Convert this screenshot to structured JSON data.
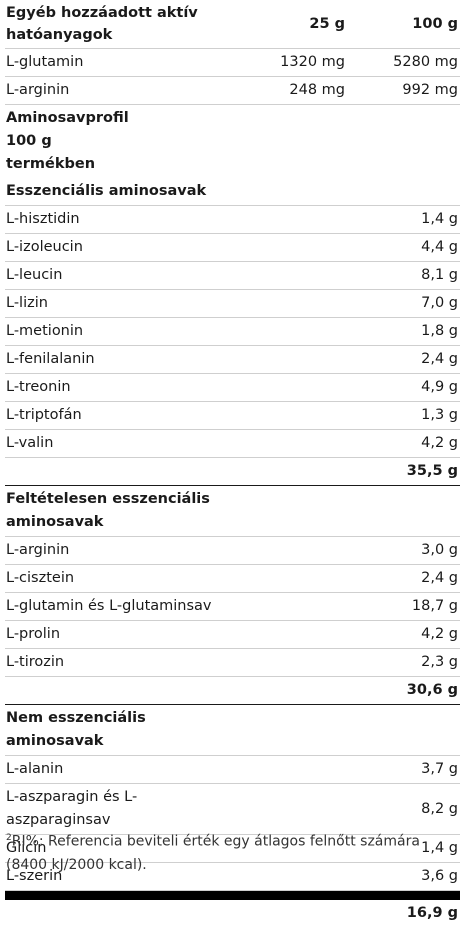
{
  "active": {
    "heading": "Egyéb hozzáadott aktív hatóanyagok",
    "col1": "25 g",
    "col2": "100 g",
    "rows": [
      {
        "name": "L-glutamin",
        "v1": "1320 mg",
        "v2": "5280 mg"
      },
      {
        "name": "L-arginin",
        "v1": "248 mg",
        "v2": "992 mg"
      }
    ]
  },
  "profile": {
    "heading": "Aminosavprofil 100 g termékben",
    "essential": {
      "heading": "Esszenciális aminosavak",
      "rows": [
        {
          "name": "L-hisztidin",
          "value": "1,4 g"
        },
        {
          "name": "L-izoleucin",
          "value": "4,4 g"
        },
        {
          "name": "L-leucin",
          "value": "8,1 g"
        },
        {
          "name": "L-lizin",
          "value": "7,0 g"
        },
        {
          "name": "L-metionin",
          "value": "1,8 g"
        },
        {
          "name": "L-fenilalanin",
          "value": "2,4 g"
        },
        {
          "name": "L-treonin",
          "value": "4,9 g"
        },
        {
          "name": "L-triptofán",
          "value": "1,3 g"
        },
        {
          "name": "L-valin",
          "value": "4,2 g"
        }
      ],
      "total": "35,5 g"
    },
    "conditional": {
      "heading": "Feltételesen esszenciális aminosavak",
      "rows": [
        {
          "name": "L-arginin",
          "value": "3,0 g"
        },
        {
          "name": "L-cisztein",
          "value": "2,4 g"
        },
        {
          "name": "L-glutamin és L-glutaminsav",
          "value": "18,7 g"
        },
        {
          "name": "L-prolin",
          "value": "4,2 g"
        },
        {
          "name": "L-tirozin",
          "value": "2,3 g"
        }
      ],
      "total": "30,6 g"
    },
    "nonessential": {
      "heading": "Nem esszenciális aminosavak",
      "rows": [
        {
          "name": "L-alanin",
          "value": "3,7 g"
        },
        {
          "name": "L-aszparagin és L-aszparaginsav",
          "value": "8,2 g"
        },
        {
          "name": "Glicin",
          "value": "1,4 g"
        },
        {
          "name": "L-szerin",
          "value": "3,6 g"
        }
      ],
      "total": "16,9 g"
    }
  },
  "footnote": {
    "sup": "2",
    "text": "RI%: Referencia beviteli érték egy átlagos felnőtt számára (8400 kJ/2000 kcal)."
  }
}
